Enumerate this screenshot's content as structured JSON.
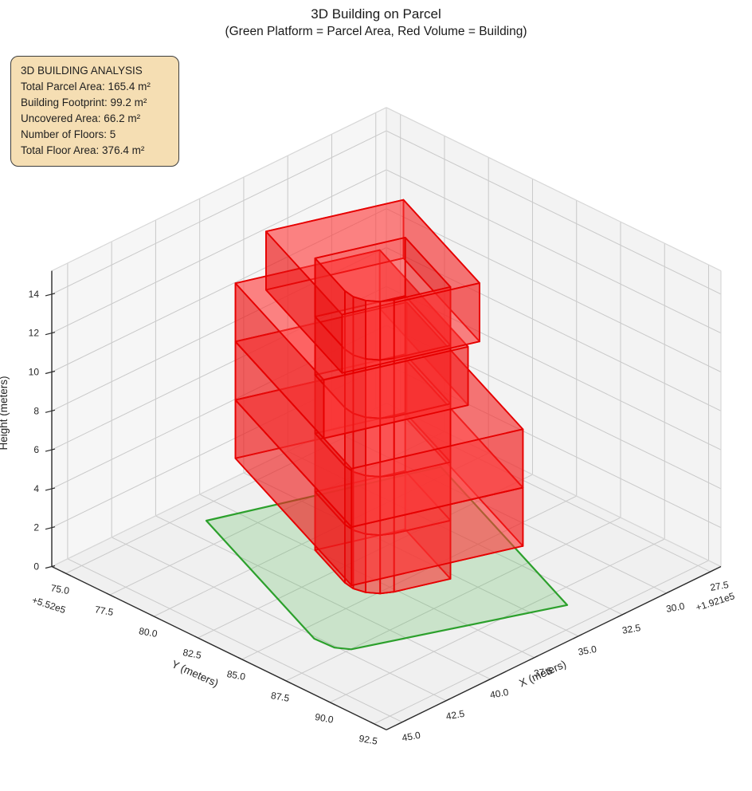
{
  "title": {
    "main": "3D Building on Parcel",
    "sub": "(Green Platform = Parcel Area, Red Volume = Building)"
  },
  "info_box": {
    "title": "3D BUILDING ANALYSIS",
    "lines": [
      "Total Parcel Area: 165.4 m²",
      "Building Footprint: 99.2 m²",
      "Uncovered Area: 66.2 m²",
      "Number of Floors: 5",
      "Total Floor Area: 376.4 m²"
    ]
  },
  "chart_data": {
    "type": "3d-building-plot",
    "title": "3D Building on Parcel",
    "subtitle": "(Green Platform = Parcel Area, Red Volume = Building)",
    "x_axis": {
      "label": "X (meters)",
      "offset_label": "+1.921e5",
      "tick_labels": [
        "27.5",
        "30.0",
        "32.5",
        "35.0",
        "37.5",
        "40.0",
        "42.5",
        "45.0"
      ],
      "range": [
        26.9,
        45.9
      ]
    },
    "y_axis": {
      "label": "Y (meters)",
      "offset_label": "+5.52e5",
      "tick_labels": [
        "75.0",
        "77.5",
        "80.0",
        "82.5",
        "85.0",
        "87.5",
        "90.0",
        "92.5"
      ],
      "range": [
        74.2,
        93.2
      ]
    },
    "z_axis": {
      "label": "Height (meters)",
      "tick_labels": [
        "0",
        "2",
        "4",
        "6",
        "8",
        "10",
        "12",
        "14"
      ],
      "range": [
        0,
        15.2
      ]
    },
    "analysis": {
      "total_parcel_area_m2": 165.4,
      "building_footprint_m2": 99.2,
      "uncovered_area_m2": 66.2,
      "number_of_floors": 5,
      "total_floor_area_m2": 376.4
    },
    "parcel_polygon_local": [
      [
        0,
        0
      ],
      [
        10.4,
        0
      ],
      [
        10.4,
        12.3
      ],
      [
        1.0,
        11.9
      ],
      [
        0.45,
        11.5
      ],
      [
        0,
        10.5
      ]
    ],
    "core_plan_local": [
      [
        3,
        4
      ],
      [
        7,
        4
      ],
      [
        7,
        8.4
      ],
      [
        4.5,
        8.4
      ],
      [
        3.93,
        8.29
      ],
      [
        3.44,
        7.96
      ],
      [
        3.11,
        7.47
      ],
      [
        3,
        6.9
      ]
    ],
    "blocks": [
      {
        "name": "floor-1-core",
        "z": [
          0,
          3
        ],
        "plan": "core"
      },
      {
        "name": "floor-2",
        "z": [
          3,
          6
        ],
        "outer": [
          1.2,
          8.8,
          0.2,
          11.5
        ],
        "hole": "core"
      },
      {
        "name": "floor-3",
        "z": [
          6,
          9
        ],
        "outer": [
          1.2,
          8.8,
          0.2,
          11.5
        ],
        "hole": "core"
      },
      {
        "name": "floor-4",
        "z": [
          9,
          12
        ],
        "outer": [
          1.2,
          7.6,
          0.2,
          8.8
        ],
        "hole": "core"
      },
      {
        "name": "floor-5",
        "z": [
          12,
          15
        ],
        "outer": [
          2.1,
          8.2,
          1.2,
          8.6
        ],
        "hole": "core"
      }
    ],
    "colors": {
      "building_edge": "#e60000",
      "building_side_face": "rgba(232,15,15,0.46)",
      "building_front_face": "rgba(250,45,45,0.42)",
      "building_top_face": "rgba(255,80,80,0.40)",
      "building_bottom_face": "rgba(255,80,80,0.34)",
      "parcel_edge": "#2ca02c",
      "parcel_face": "rgba(70,180,70,0.22)",
      "pane_floor": "#f0f0f0",
      "pane_left": "#f6f6f6",
      "pane_right": "#f3f3f3",
      "grid_line": "#c9c9c9",
      "spine": "#2b2b2b",
      "info_box_bg": "#f5deb3"
    }
  }
}
